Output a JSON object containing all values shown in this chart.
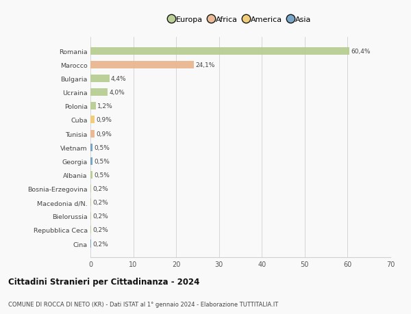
{
  "countries": [
    "Romania",
    "Marocco",
    "Bulgaria",
    "Ucraina",
    "Polonia",
    "Cuba",
    "Tunisia",
    "Vietnam",
    "Georgia",
    "Albania",
    "Bosnia-Erzegovina",
    "Macedonia d/N.",
    "Bielorussia",
    "Repubblica Ceca",
    "Cina"
  ],
  "values": [
    60.4,
    24.1,
    4.4,
    4.0,
    1.2,
    0.9,
    0.9,
    0.5,
    0.5,
    0.5,
    0.2,
    0.2,
    0.2,
    0.2,
    0.2
  ],
  "labels": [
    "60,4%",
    "24,1%",
    "4,4%",
    "4,0%",
    "1,2%",
    "0,9%",
    "0,9%",
    "0,5%",
    "0,5%",
    "0,5%",
    "0,2%",
    "0,2%",
    "0,2%",
    "0,2%",
    "0,2%"
  ],
  "colors": [
    "#b5cc8e",
    "#e8b48a",
    "#b5cc8e",
    "#b5cc8e",
    "#b5cc8e",
    "#f0c96e",
    "#e8b48a",
    "#6b9dc2",
    "#6b9dc2",
    "#b5cc8e",
    "#b5cc8e",
    "#b5cc8e",
    "#b5cc8e",
    "#b5cc8e",
    "#6b9dc2"
  ],
  "legend": [
    {
      "label": "Europa",
      "color": "#b5cc8e"
    },
    {
      "label": "Africa",
      "color": "#e8b48a"
    },
    {
      "label": "America",
      "color": "#f0c96e"
    },
    {
      "label": "Asia",
      "color": "#6b9dc2"
    }
  ],
  "xlim": [
    0,
    70
  ],
  "xticks": [
    0,
    10,
    20,
    30,
    40,
    50,
    60,
    70
  ],
  "title": "Cittadini Stranieri per Cittadinanza - 2024",
  "subtitle": "COMUNE DI ROCCA DI NETO (KR) - Dati ISTAT al 1° gennaio 2024 - Elaborazione TUTTITALIA.IT",
  "background_color": "#f9f9f9",
  "bar_height": 0.55,
  "grid_color": "#d0d0d0"
}
